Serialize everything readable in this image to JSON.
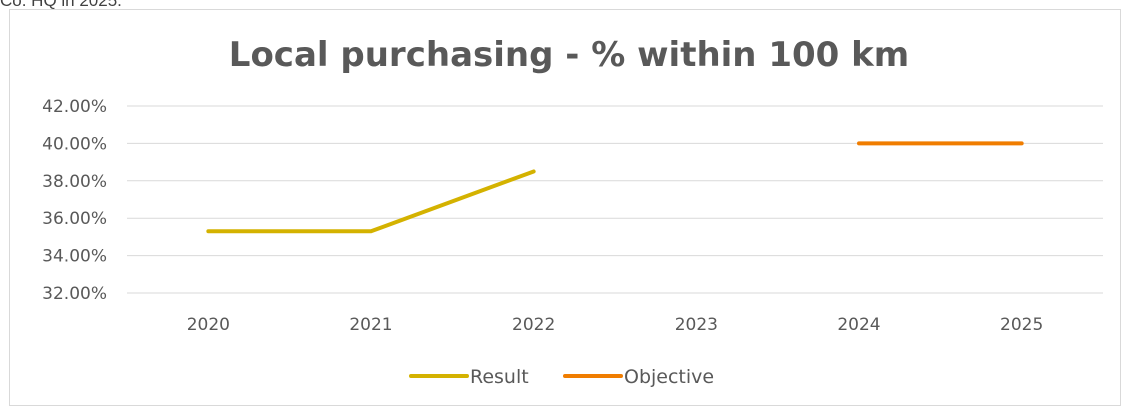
{
  "page": {
    "top_snippet": "Co. HQ in 2025."
  },
  "chart_data": {
    "type": "line",
    "title": "Local purchasing - % within 100 km",
    "xlabel": "",
    "ylabel": "",
    "categories": [
      "2020",
      "2021",
      "2022",
      "2023",
      "2024",
      "2025"
    ],
    "ylim": [
      32,
      42
    ],
    "yticks": [
      "42.00%",
      "40.00%",
      "38.00%",
      "36.00%",
      "34.00%",
      "32.00%"
    ],
    "grid": true,
    "legend_position": "bottom",
    "series": [
      {
        "name": "Result",
        "color": "#D4B200",
        "values": [
          35.3,
          35.3,
          38.5,
          null,
          null,
          null
        ]
      },
      {
        "name": "Objective",
        "color": "#F07D00",
        "values": [
          null,
          null,
          null,
          null,
          40.0,
          40.0
        ]
      }
    ]
  }
}
